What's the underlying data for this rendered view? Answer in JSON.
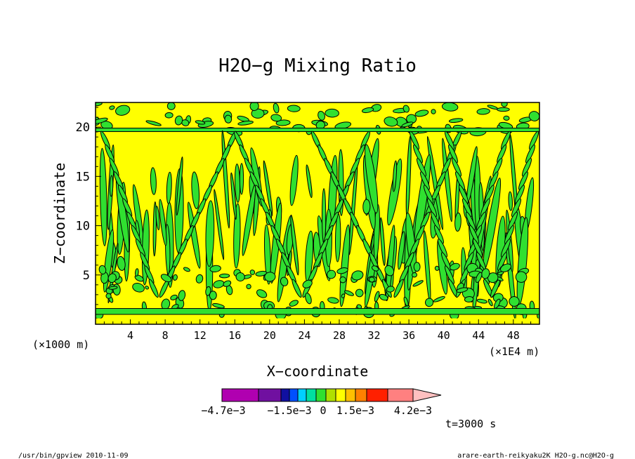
{
  "chart_data": {
    "type": "heatmap",
    "title": "H2O−g Mixing Ratio",
    "xlabel": "X−coordinate",
    "ylabel": "Z−coordinate",
    "x_unit_left": "(×1000 m)",
    "x_unit_right": "(×1E4 m)",
    "x_ticks": [
      4,
      8,
      12,
      16,
      20,
      24,
      28,
      32,
      36,
      40,
      44,
      48
    ],
    "y_ticks": [
      5,
      10,
      15,
      20
    ],
    "xlim": [
      0,
      51
    ],
    "ylim": [
      0,
      22.5
    ],
    "field_levels": {
      "background": "yellow (0 to 1.5e-3)",
      "pockets": "green (−1.5e-3 to 0)",
      "surface_band_z": [
        1.0,
        1.6
      ],
      "upper_band_z": [
        18.5,
        20.0
      ]
    },
    "colorbar": {
      "colors": [
        "#b000b0",
        "#7010a0",
        "#1010a0",
        "#0050ff",
        "#00d0ff",
        "#00e0a0",
        "#30e030",
        "#b0e000",
        "#ffff00",
        "#ffc000",
        "#ff8000",
        "#ff2000",
        "#ff8080",
        "#ffc0c0"
      ],
      "labels": [
        "−4.7e−3",
        "−1.5e−3",
        "0",
        "1.5e−3",
        "4.2e−3"
      ]
    },
    "time_label": "t=3000 s"
  },
  "footer": {
    "left": "/usr/bin/gpview   2010-11-09",
    "right": "arare-earth-reikyaku2K_H2O-g.nc@H2O-g"
  },
  "colors": {
    "yellow": "#ffff00",
    "green": "#30e030",
    "outline": "#000000"
  }
}
